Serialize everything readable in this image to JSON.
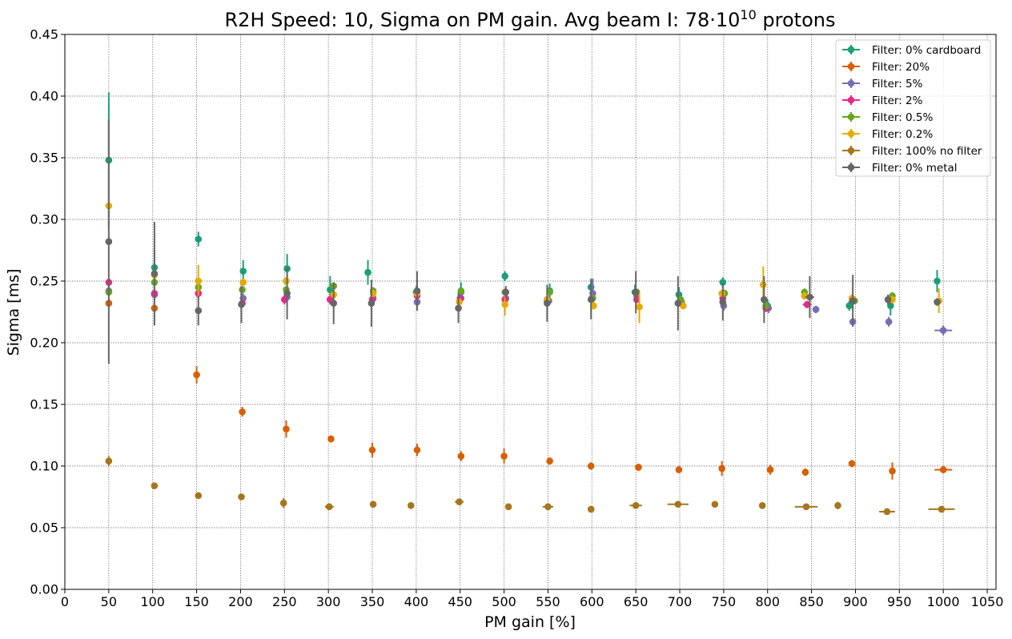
{
  "chart_data": {
    "type": "scatter",
    "title": "R2H Speed: 10, Sigma on PM gain. Avg beam I: 78·10",
    "title_superscript": "10",
    "title_suffix": " protons",
    "xlabel": "PM gain [%]",
    "ylabel": "Sigma [ms]",
    "xlim": [
      0,
      1060
    ],
    "ylim": [
      0,
      0.45
    ],
    "xticks": [
      0,
      50,
      100,
      150,
      200,
      250,
      300,
      350,
      400,
      450,
      500,
      550,
      600,
      650,
      700,
      750,
      800,
      850,
      900,
      950,
      1000,
      1050
    ],
    "yticks": [
      "0.00",
      "0.05",
      "0.10",
      "0.15",
      "0.20",
      "0.25",
      "0.30",
      "0.35",
      "0.40",
      "0.45"
    ],
    "grid": true,
    "legend_position": "top-right",
    "series": [
      {
        "name": "Filter: 0% cardboard",
        "color": "#1b9e77",
        "points": [
          {
            "x": 50,
            "y": 0.348,
            "yerr": 0.055
          },
          {
            "x": 102,
            "y": 0.261,
            "yerr": 0.015
          },
          {
            "x": 152,
            "y": 0.284,
            "yerr": 0.006
          },
          {
            "x": 203,
            "y": 0.258,
            "yerr": 0.009
          },
          {
            "x": 253,
            "y": 0.26,
            "yerr": 0.012
          },
          {
            "x": 302,
            "y": 0.243,
            "yerr": 0.011
          },
          {
            "x": 345,
            "y": 0.257,
            "yerr": 0.01
          },
          {
            "x": 400,
            "y": 0.241,
            "yerr": 0.005
          },
          {
            "x": 451,
            "y": 0.241,
            "yerr": 0.008
          },
          {
            "x": 501,
            "y": 0.254,
            "yerr": 0.004
          },
          {
            "x": 552,
            "y": 0.242,
            "yerr": 0.006
          },
          {
            "x": 599,
            "y": 0.245,
            "yerr": 0.007
          },
          {
            "x": 649,
            "y": 0.241,
            "yerr": 0.006
          },
          {
            "x": 699,
            "y": 0.239,
            "yerr": 0.006
          },
          {
            "x": 749,
            "y": 0.249,
            "yerr": 0.004
          },
          {
            "x": 800,
            "y": 0.23,
            "yerr": 0.005
          },
          {
            "x": 893,
            "y": 0.23,
            "yerr": 0.004
          },
          {
            "x": 940,
            "y": 0.23,
            "yerr": 0.008
          },
          {
            "x": 993,
            "y": 0.25,
            "yerr": 0.009
          }
        ]
      },
      {
        "name": "Filter: 20%",
        "color": "#d95f02",
        "points": [
          {
            "x": 50,
            "y": 0.232,
            "yerr": 0.004
          },
          {
            "x": 102,
            "y": 0.228,
            "yerr": 0.004
          },
          {
            "x": 150,
            "y": 0.174,
            "yerr": 0.007
          },
          {
            "x": 202,
            "y": 0.144,
            "yerr": 0.004
          },
          {
            "x": 252,
            "y": 0.13,
            "yerr": 0.007
          },
          {
            "x": 303,
            "y": 0.122,
            "yerr": 0.003
          },
          {
            "x": 350,
            "y": 0.113,
            "yerr": 0.006
          },
          {
            "x": 401,
            "y": 0.113,
            "yerr": 0.005
          },
          {
            "x": 451,
            "y": 0.108,
            "yerr": 0.004
          },
          {
            "x": 500,
            "y": 0.108,
            "yerr": 0.006
          },
          {
            "x": 552,
            "y": 0.104,
            "yerr": 0.003
          },
          {
            "x": 599,
            "y": 0.1,
            "yerr": 0.003
          },
          {
            "x": 653,
            "y": 0.099,
            "yerr": 0.003
          },
          {
            "x": 699,
            "y": 0.097,
            "yerr": 0.003
          },
          {
            "x": 748,
            "y": 0.098,
            "yerr": 0.006
          },
          {
            "x": 803,
            "y": 0.097,
            "yerr": 0.004,
            "xerr": 4
          },
          {
            "x": 843,
            "y": 0.095,
            "yerr": 0.003
          },
          {
            "x": 896,
            "y": 0.102,
            "yerr": 0.003
          },
          {
            "x": 942,
            "y": 0.096,
            "yerr": 0.007
          },
          {
            "x": 1000,
            "y": 0.097,
            "yerr": 0.003,
            "xerr": 10
          }
        ]
      },
      {
        "name": "Filter: 5%",
        "color": "#7570b3",
        "points": [
          {
            "x": 50,
            "y": 0.242,
            "yerr": 0.004
          },
          {
            "x": 102,
            "y": 0.239,
            "yerr": 0.004
          },
          {
            "x": 152,
            "y": 0.24,
            "yerr": 0.004
          },
          {
            "x": 203,
            "y": 0.236,
            "yerr": 0.004
          },
          {
            "x": 253,
            "y": 0.237,
            "yerr": 0.004
          },
          {
            "x": 302,
            "y": 0.235,
            "yerr": 0.004
          },
          {
            "x": 351,
            "y": 0.236,
            "yerr": 0.004
          },
          {
            "x": 401,
            "y": 0.233,
            "yerr": 0.004
          },
          {
            "x": 451,
            "y": 0.236,
            "yerr": 0.004
          },
          {
            "x": 502,
            "y": 0.236,
            "yerr": 0.004
          },
          {
            "x": 551,
            "y": 0.234,
            "yerr": 0.004
          },
          {
            "x": 601,
            "y": 0.24,
            "yerr": 0.012
          },
          {
            "x": 651,
            "y": 0.238,
            "yerr": 0.004
          },
          {
            "x": 702,
            "y": 0.233,
            "yerr": 0.004
          },
          {
            "x": 750,
            "y": 0.23,
            "yerr": 0.004
          },
          {
            "x": 801,
            "y": 0.228,
            "yerr": 0.004
          },
          {
            "x": 855,
            "y": 0.227,
            "yerr": 0.003
          },
          {
            "x": 897,
            "y": 0.217,
            "yerr": 0.004
          },
          {
            "x": 938,
            "y": 0.217,
            "yerr": 0.004
          },
          {
            "x": 1000,
            "y": 0.21,
            "yerr": 0.004,
            "xerr": 10
          }
        ]
      },
      {
        "name": "Filter: 2%",
        "color": "#e7298a",
        "points": [
          {
            "x": 50,
            "y": 0.249,
            "yerr": 0.003
          },
          {
            "x": 102,
            "y": 0.24,
            "yerr": 0.003
          },
          {
            "x": 152,
            "y": 0.24,
            "yerr": 0.003
          },
          {
            "x": 202,
            "y": 0.232,
            "yerr": 0.003
          },
          {
            "x": 250,
            "y": 0.235,
            "yerr": 0.004
          },
          {
            "x": 302,
            "y": 0.235,
            "yerr": 0.003
          },
          {
            "x": 350,
            "y": 0.235,
            "yerr": 0.003
          },
          {
            "x": 401,
            "y": 0.238,
            "yerr": 0.003
          },
          {
            "x": 450,
            "y": 0.236,
            "yerr": 0.003
          },
          {
            "x": 501,
            "y": 0.235,
            "yerr": 0.003
          },
          {
            "x": 549,
            "y": 0.234,
            "yerr": 0.003
          },
          {
            "x": 600,
            "y": 0.236,
            "yerr": 0.003
          },
          {
            "x": 651,
            "y": 0.235,
            "yerr": 0.003
          },
          {
            "x": 701,
            "y": 0.233,
            "yerr": 0.003
          },
          {
            "x": 749,
            "y": 0.236,
            "yerr": 0.003
          },
          {
            "x": 798,
            "y": 0.228,
            "yerr": 0.003
          },
          {
            "x": 845,
            "y": 0.231,
            "yerr": 0.003,
            "xerr": 5
          },
          {
            "x": 897,
            "y": 0.234,
            "yerr": 0.003
          },
          {
            "x": 941,
            "y": 0.235,
            "yerr": 0.003
          }
        ]
      },
      {
        "name": "Filter: 0.5%",
        "color": "#66a61e",
        "points": [
          {
            "x": 50,
            "y": 0.241,
            "yerr": 0.003
          },
          {
            "x": 102,
            "y": 0.249,
            "yerr": 0.003
          },
          {
            "x": 152,
            "y": 0.245,
            "yerr": 0.003
          },
          {
            "x": 202,
            "y": 0.243,
            "yerr": 0.003
          },
          {
            "x": 252,
            "y": 0.243,
            "yerr": 0.003
          },
          {
            "x": 306,
            "y": 0.246,
            "yerr": 0.003
          },
          {
            "x": 351,
            "y": 0.242,
            "yerr": 0.003
          },
          {
            "x": 401,
            "y": 0.241,
            "yerr": 0.003
          },
          {
            "x": 451,
            "y": 0.242,
            "yerr": 0.003
          },
          {
            "x": 501,
            "y": 0.241,
            "yerr": 0.003
          },
          {
            "x": 552,
            "y": 0.241,
            "yerr": 0.003
          },
          {
            "x": 601,
            "y": 0.236,
            "yerr": 0.003
          },
          {
            "x": 651,
            "y": 0.241,
            "yerr": 0.003
          },
          {
            "x": 701,
            "y": 0.235,
            "yerr": 0.003
          },
          {
            "x": 751,
            "y": 0.24,
            "yerr": 0.003
          },
          {
            "x": 798,
            "y": 0.23,
            "yerr": 0.003
          },
          {
            "x": 842,
            "y": 0.241,
            "yerr": 0.003
          },
          {
            "x": 899,
            "y": 0.234,
            "yerr": 0.003
          },
          {
            "x": 942,
            "y": 0.238,
            "yerr": 0.003
          }
        ]
      },
      {
        "name": "Filter: 0.2%",
        "color": "#e6ab02",
        "points": [
          {
            "x": 50,
            "y": 0.311,
            "yerr": 0.003
          },
          {
            "x": 102,
            "y": 0.255,
            "yerr": 0.003
          },
          {
            "x": 152,
            "y": 0.25,
            "yerr": 0.013
          },
          {
            "x": 203,
            "y": 0.249,
            "yerr": 0.003
          },
          {
            "x": 252,
            "y": 0.25,
            "yerr": 0.003
          },
          {
            "x": 306,
            "y": 0.239,
            "yerr": 0.003
          },
          {
            "x": 351,
            "y": 0.24,
            "yerr": 0.003
          },
          {
            "x": 401,
            "y": 0.24,
            "yerr": 0.003
          },
          {
            "x": 449,
            "y": 0.233,
            "yerr": 0.003
          },
          {
            "x": 501,
            "y": 0.231,
            "yerr": 0.009
          },
          {
            "x": 549,
            "y": 0.235,
            "yerr": 0.003
          },
          {
            "x": 602,
            "y": 0.23,
            "yerr": 0.003
          },
          {
            "x": 654,
            "y": 0.229,
            "yerr": 0.013
          },
          {
            "x": 704,
            "y": 0.23,
            "yerr": 0.003
          },
          {
            "x": 748,
            "y": 0.24,
            "yerr": 0.003
          },
          {
            "x": 795,
            "y": 0.247,
            "yerr": 0.015
          },
          {
            "x": 842,
            "y": 0.238,
            "yerr": 0.003
          },
          {
            "x": 896,
            "y": 0.236,
            "yerr": 0.003
          },
          {
            "x": 942,
            "y": 0.235,
            "yerr": 0.003
          },
          {
            "x": 995,
            "y": 0.234,
            "yerr": 0.01
          }
        ]
      },
      {
        "name": "Filter: 100% no filter",
        "color": "#a6761d",
        "points": [
          {
            "x": 50,
            "y": 0.104,
            "yerr": 0.004
          },
          {
            "x": 102,
            "y": 0.084,
            "yerr": 0.002
          },
          {
            "x": 152,
            "y": 0.076,
            "yerr": 0.002
          },
          {
            "x": 201,
            "y": 0.075,
            "yerr": 0.002
          },
          {
            "x": 249,
            "y": 0.07,
            "yerr": 0.004
          },
          {
            "x": 301,
            "y": 0.067,
            "yerr": 0.002,
            "xerr": 5
          },
          {
            "x": 351,
            "y": 0.069,
            "yerr": 0.002
          },
          {
            "x": 394,
            "y": 0.068,
            "yerr": 0.002
          },
          {
            "x": 449,
            "y": 0.071,
            "yerr": 0.002,
            "xerr": 5
          },
          {
            "x": 505,
            "y": 0.067,
            "yerr": 0.002
          },
          {
            "x": 550,
            "y": 0.067,
            "yerr": 0.002,
            "xerr": 6
          },
          {
            "x": 599,
            "y": 0.065,
            "yerr": 0.002
          },
          {
            "x": 650,
            "y": 0.068,
            "yerr": 0.002,
            "xerr": 7
          },
          {
            "x": 698,
            "y": 0.069,
            "yerr": 0.002,
            "xerr": 12
          },
          {
            "x": 740,
            "y": 0.069,
            "yerr": 0.002
          },
          {
            "x": 794,
            "y": 0.068,
            "yerr": 0.002
          },
          {
            "x": 844,
            "y": 0.067,
            "yerr": 0.002,
            "xerr": 13
          },
          {
            "x": 880,
            "y": 0.068,
            "yerr": 0.003
          },
          {
            "x": 936,
            "y": 0.063,
            "yerr": 0.002,
            "xerr": 9
          },
          {
            "x": 998,
            "y": 0.065,
            "yerr": 0.002,
            "xerr": 15
          }
        ]
      },
      {
        "name": "Filter: 0% metal",
        "color": "#666666",
        "points": [
          {
            "x": 50,
            "y": 0.282,
            "yerr": 0.099
          },
          {
            "x": 102,
            "y": 0.256,
            "yerr": 0.042
          },
          {
            "x": 152,
            "y": 0.226,
            "yerr": 0.012
          },
          {
            "x": 201,
            "y": 0.231,
            "yerr": 0.015
          },
          {
            "x": 253,
            "y": 0.24,
            "yerr": 0.021
          },
          {
            "x": 306,
            "y": 0.232,
            "yerr": 0.017
          },
          {
            "x": 349,
            "y": 0.232,
            "yerr": 0.019
          },
          {
            "x": 401,
            "y": 0.242,
            "yerr": 0.016
          },
          {
            "x": 448,
            "y": 0.228,
            "yerr": 0.012
          },
          {
            "x": 502,
            "y": 0.241,
            "yerr": 0.005
          },
          {
            "x": 549,
            "y": 0.232,
            "yerr": 0.015
          },
          {
            "x": 599,
            "y": 0.235,
            "yerr": 0.016
          },
          {
            "x": 650,
            "y": 0.241,
            "yerr": 0.017
          },
          {
            "x": 698,
            "y": 0.232,
            "yerr": 0.022
          },
          {
            "x": 749,
            "y": 0.233,
            "yerr": 0.015
          },
          {
            "x": 796,
            "y": 0.235,
            "yerr": 0.019
          },
          {
            "x": 848,
            "y": 0.237,
            "yerr": 0.017,
            "xerr": 5
          },
          {
            "x": 897,
            "y": 0.234,
            "yerr": 0.021
          },
          {
            "x": 937,
            "y": 0.235,
            "yerr": 0.004
          },
          {
            "x": 993,
            "y": 0.233,
            "yerr": 0.003
          }
        ]
      }
    ]
  }
}
